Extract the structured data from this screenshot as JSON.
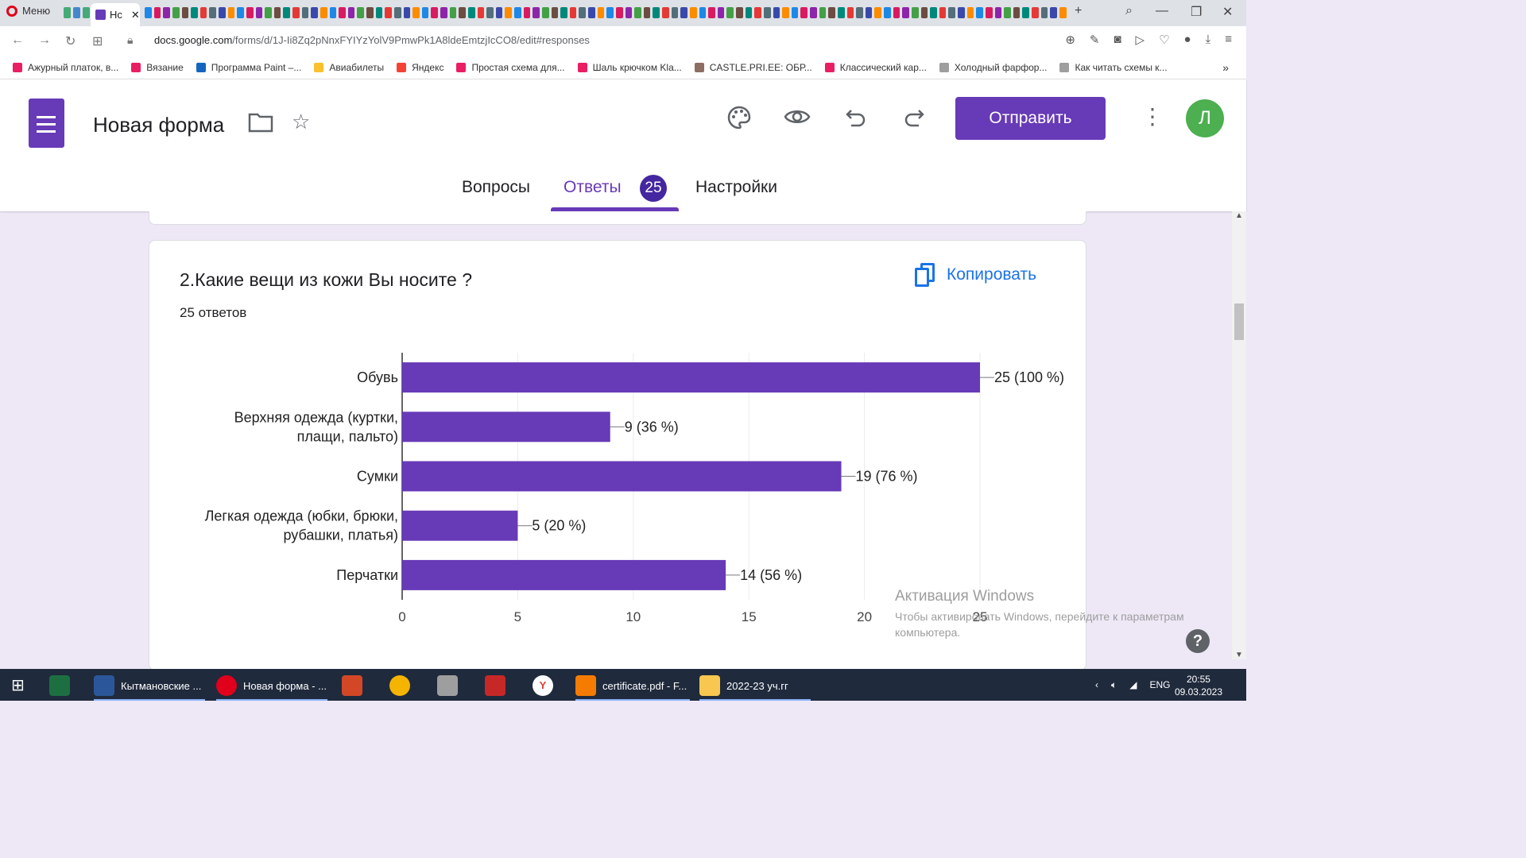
{
  "browser": {
    "menu_label": "Меню",
    "active_tab_label": "Нс",
    "url_domain": "docs.google.com",
    "url_path": "/forms/d/1J-Ii8Zq2pNnxFYIYzYolV9PmwPk1A8ldeEmtzjIcCO8/edit#responses",
    "bookmarks": [
      "Ажурный платок, в...",
      "Вязание",
      "Программа Paint –...",
      "Авиабилеты",
      "Яндекс",
      "Простая схема для...",
      "Шаль крючком Kla...",
      "CASTLE.PRI.EE: ОБР...",
      "Классический кар...",
      "Холодный фарфор...",
      "Как читать схемы к..."
    ]
  },
  "form": {
    "title": "Новая форма",
    "send_label": "Отправить",
    "avatar_letter": "Л",
    "tabs": {
      "questions": "Вопросы",
      "answers": "Ответы",
      "answers_count": "25",
      "settings": "Настройки"
    }
  },
  "question": {
    "title": "2.Какие вещи из кожи Вы носите ?",
    "responses": "25 ответов",
    "copy_label": "Копировать"
  },
  "chart_data": {
    "type": "bar",
    "orientation": "horizontal",
    "categories": [
      [
        "Обувь"
      ],
      [
        "Верхняя одежда (куртки,",
        "плащи, пальто)"
      ],
      [
        "Сумки"
      ],
      [
        "Легкая одежда (юбки, брюки,",
        "рубашки, платья)"
      ],
      [
        "Перчатки"
      ]
    ],
    "values": [
      25,
      9,
      19,
      5,
      14
    ],
    "data_labels": [
      "25 (100 %)",
      "9 (36 %)",
      "19 (76 %)",
      "5 (20 %)",
      "14 (56 %)"
    ],
    "xlim": [
      0,
      25
    ],
    "xticks": [
      "0",
      "5",
      "10",
      "15",
      "20",
      "25"
    ],
    "grid": true,
    "color": "#673ab7"
  },
  "windows": {
    "activation_title": "Активация Windows",
    "activation_text": "Чтобы активировать Windows, перейдите к параметрам компьютера.",
    "help_symbol": "?",
    "taskbar": {
      "word": "Кытмановские ...",
      "opera": "Новая форма - ...",
      "pdf": "certificate.pdf - F...",
      "folder": "2022-23 уч.гг"
    },
    "lang": "ENG",
    "time": "20:55",
    "date": "09.03.2023"
  }
}
